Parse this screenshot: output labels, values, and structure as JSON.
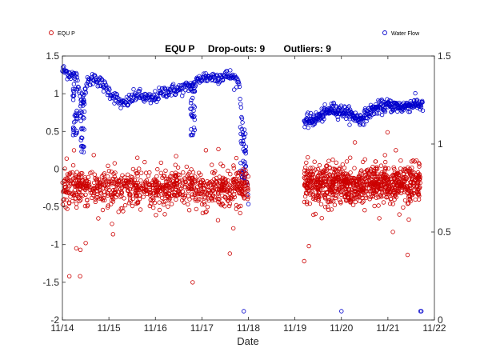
{
  "chart_data": {
    "type": "scatter",
    "title": "EQU P     Drop-outs: 9       Outliers: 9",
    "xlabel": "Date",
    "x_ticks": [
      "11/14",
      "11/15",
      "11/16",
      "11/17",
      "11/18",
      "11/19",
      "11/20",
      "11/21",
      "11/22"
    ],
    "xlim_days": [
      14,
      22
    ],
    "left_axis": {
      "ylim": [
        -2,
        1.5
      ],
      "ticks": [
        1.5,
        1,
        0.5,
        0,
        -0.5,
        -1,
        -1.5,
        -2
      ],
      "tick_labels": [
        "1.5",
        "1",
        "0.5",
        "0",
        "-0.5",
        "-1",
        "-1.5",
        "-2"
      ]
    },
    "right_axis": {
      "ylim": [
        0,
        1.5
      ],
      "ticks": [
        1.5,
        1,
        0.5,
        0
      ],
      "tick_labels": [
        "1.5",
        "1",
        "0.5",
        "0"
      ]
    },
    "legend_placement": "top (split left and right)",
    "grid": false,
    "series": [
      {
        "name": "EQU P",
        "axis": "left",
        "color": "#cc0000",
        "marker": "open-circle",
        "segments": [
          {
            "x_start": 14.0,
            "x_end": 18.0,
            "level": -0.25,
            "spread": 0.12
          },
          {
            "x_start": 19.2,
            "x_end": 21.7,
            "level": -0.2,
            "spread": 0.12
          }
        ],
        "outliers": [
          {
            "x": 14.15,
            "y": -1.42
          },
          {
            "x": 14.3,
            "y": -1.05
          },
          {
            "x": 14.38,
            "y": -1.42
          },
          {
            "x": 14.5,
            "y": -0.98
          },
          {
            "x": 16.8,
            "y": -1.5
          },
          {
            "x": 17.6,
            "y": -1.12
          },
          {
            "x": 19.2,
            "y": -1.22
          },
          {
            "x": 19.3,
            "y": -1.02
          },
          {
            "x": 14.25,
            "y": 0.25
          }
        ]
      },
      {
        "name": "Water Flow",
        "axis": "right",
        "color": "#0000cc",
        "marker": "open-circle",
        "segments": [
          {
            "x_start": 14.0,
            "x_end": 18.0
          },
          {
            "x_start": 19.2,
            "x_end": 21.75
          }
        ],
        "profile": [
          [
            14.0,
            1.42
          ],
          [
            14.3,
            1.38
          ],
          [
            14.4,
            1.25
          ],
          [
            14.55,
            1.35
          ],
          [
            14.7,
            1.38
          ],
          [
            15.0,
            1.3
          ],
          [
            15.3,
            1.22
          ],
          [
            15.6,
            1.28
          ],
          [
            15.9,
            1.25
          ],
          [
            16.2,
            1.3
          ],
          [
            16.5,
            1.31
          ],
          [
            16.8,
            1.33
          ],
          [
            17.0,
            1.38
          ],
          [
            17.3,
            1.38
          ],
          [
            17.6,
            1.39
          ],
          [
            17.8,
            1.35
          ],
          [
            17.95,
            0.85
          ],
          [
            18.0,
            0.7
          ],
          [
            19.2,
            1.12
          ],
          [
            19.5,
            1.15
          ],
          [
            19.8,
            1.2
          ],
          [
            20.1,
            1.18
          ],
          [
            20.4,
            1.14
          ],
          [
            20.7,
            1.2
          ],
          [
            21.0,
            1.22
          ],
          [
            21.3,
            1.21
          ],
          [
            21.6,
            1.23
          ],
          [
            21.75,
            1.22
          ]
        ],
        "outliers": [
          {
            "x": 17.9,
            "y": 0.05
          },
          {
            "x": 20.0,
            "y": 0.05
          },
          {
            "x": 21.7,
            "y": 0.05
          },
          {
            "x": 21.72,
            "y": 0.05
          }
        ]
      }
    ]
  }
}
